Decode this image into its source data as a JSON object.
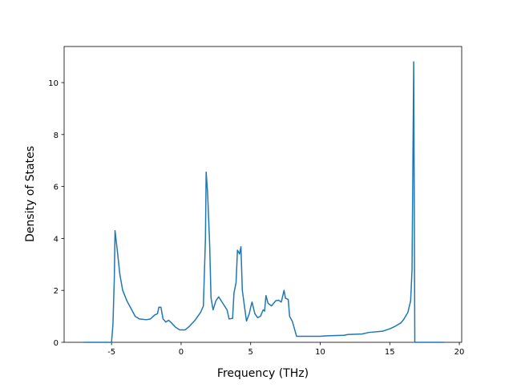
{
  "chart_data": {
    "type": "line",
    "xlabel": "Frequency (THz)",
    "ylabel": "Density of States",
    "x": [
      -7.0,
      -5.0,
      -4.9,
      -4.8,
      -4.75,
      -4.6,
      -4.4,
      -4.2,
      -3.9,
      -3.6,
      -3.3,
      -3.0,
      -2.5,
      -2.2,
      -1.9,
      -1.7,
      -1.6,
      -1.45,
      -1.3,
      -1.1,
      -0.9,
      -0.7,
      -0.4,
      -0.1,
      0.3,
      0.6,
      1.0,
      1.4,
      1.6,
      1.75,
      1.8,
      1.9,
      2.05,
      2.15,
      2.3,
      2.5,
      2.7,
      3.0,
      3.3,
      3.45,
      3.7,
      3.8,
      3.95,
      4.05,
      4.2,
      4.3,
      4.4,
      4.6,
      4.7,
      4.9,
      5.0,
      5.1,
      5.3,
      5.5,
      5.7,
      5.9,
      6.0,
      6.1,
      6.25,
      6.5,
      6.8,
      7.0,
      7.2,
      7.4,
      7.5,
      7.7,
      7.8,
      8.0,
      8.3,
      10.0,
      10.5,
      11.7,
      12.0,
      13.0,
      13.5,
      14.5,
      15.0,
      15.4,
      15.8,
      16.0,
      16.3,
      16.5,
      16.6,
      16.72,
      16.8,
      18.9
    ],
    "series": [
      {
        "color": "#1f77b4",
        "values": [
          0,
          0,
          0.7,
          2.5,
          4.3,
          3.6,
          2.6,
          2.0,
          1.6,
          1.3,
          1.0,
          0.9,
          0.87,
          0.9,
          1.05,
          1.1,
          1.35,
          1.35,
          0.9,
          0.78,
          0.85,
          0.75,
          0.58,
          0.48,
          0.48,
          0.62,
          0.85,
          1.15,
          1.4,
          4.0,
          6.55,
          5.8,
          3.8,
          1.7,
          1.25,
          1.6,
          1.75,
          1.5,
          1.25,
          0.9,
          0.92,
          1.9,
          2.3,
          3.55,
          3.4,
          3.68,
          2.0,
          1.2,
          0.82,
          1.1,
          1.35,
          1.55,
          1.1,
          0.95,
          1.0,
          1.25,
          1.2,
          1.8,
          1.5,
          1.4,
          1.6,
          1.62,
          1.55,
          2.0,
          1.7,
          1.65,
          1.0,
          0.8,
          0.23,
          0.23,
          0.25,
          0.27,
          0.3,
          0.32,
          0.38,
          0.43,
          0.52,
          0.62,
          0.75,
          0.88,
          1.15,
          1.6,
          2.8,
          10.8,
          0,
          0
        ]
      }
    ],
    "xlim": [
      -8.41,
      20.17
    ],
    "xticks": [
      -5,
      0,
      5,
      10,
      15,
      20
    ],
    "ylim": [
      0,
      11.39
    ],
    "yticks": [
      0,
      2,
      4,
      6,
      8,
      10
    ],
    "grid": false
  }
}
